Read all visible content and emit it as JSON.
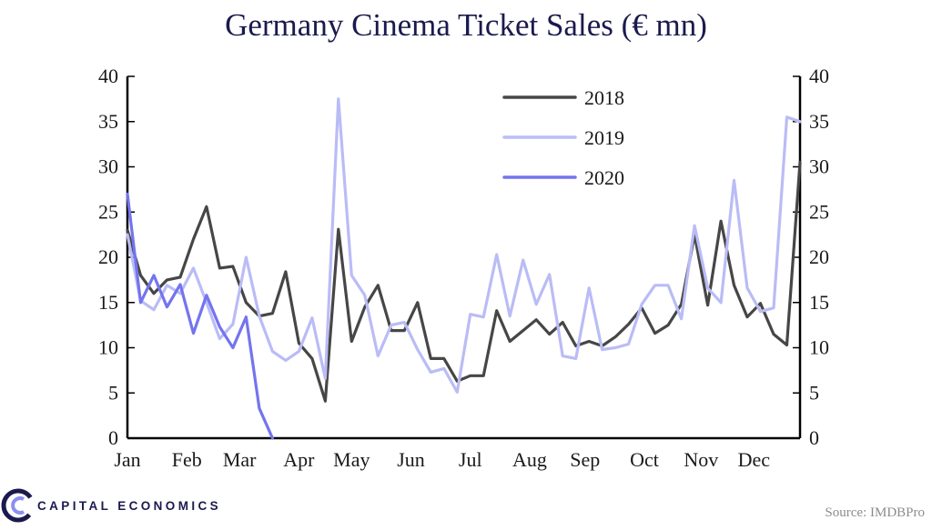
{
  "chart_data": {
    "type": "line",
    "title": "Germany Cinema Ticket Sales (€ mn)",
    "xlabel": "",
    "ylabel": "",
    "ylim": [
      0,
      40
    ],
    "yticks": [
      0,
      5,
      10,
      15,
      20,
      25,
      30,
      35,
      40
    ],
    "ytick_labels": [
      "0",
      "5",
      "10",
      "15",
      "20",
      "25",
      "30",
      "35",
      "40"
    ],
    "x_unit": "week",
    "x_range": [
      1,
      52
    ],
    "months": [
      {
        "label": "Jan",
        "week": 1
      },
      {
        "label": "Feb",
        "week": 5.5
      },
      {
        "label": "Mar",
        "week": 9.5
      },
      {
        "label": "Apr",
        "week": 14
      },
      {
        "label": "May",
        "week": 18
      },
      {
        "label": "Jun",
        "week": 22.5
      },
      {
        "label": "Jul",
        "week": 27
      },
      {
        "label": "Aug",
        "week": 31.5
      },
      {
        "label": "Sep",
        "week": 35.7
      },
      {
        "label": "Oct",
        "week": 40.2
      },
      {
        "label": "Nov",
        "week": 44.5
      },
      {
        "label": "Dec",
        "week": 48.5
      }
    ],
    "legend_position": "top-center",
    "series": [
      {
        "name": "2018",
        "color": "#464646",
        "values": [
          23.0,
          18.0,
          16.0,
          17.5,
          17.8,
          22.0,
          25.6,
          18.8,
          19.0,
          15.0,
          13.5,
          13.8,
          18.4,
          10.5,
          8.8,
          4.1,
          23.1,
          10.7,
          14.5,
          16.9,
          11.9,
          11.9,
          15.0,
          8.8,
          8.8,
          6.3,
          6.9,
          6.9,
          14.1,
          10.7,
          11.9,
          13.1,
          11.5,
          12.8,
          10.2,
          10.7,
          10.2,
          11.2,
          12.6,
          14.4,
          11.6,
          12.5,
          14.8,
          22.5,
          14.7,
          24.0,
          16.9,
          13.4,
          14.9,
          11.5,
          10.3,
          30.5
        ]
      },
      {
        "name": "2019",
        "color": "#babcf6",
        "values": [
          22.5,
          15.2,
          14.2,
          16.9,
          16.0,
          18.8,
          15.0,
          11.0,
          12.6,
          20.0,
          13.5,
          9.6,
          8.6,
          9.6,
          13.3,
          6.6,
          37.5,
          18.0,
          15.8,
          9.1,
          12.5,
          12.8,
          9.8,
          7.3,
          7.7,
          5.1,
          13.7,
          13.4,
          20.3,
          13.5,
          19.7,
          14.8,
          18.1,
          9.1,
          8.8,
          16.6,
          9.8,
          10.0,
          10.4,
          14.8,
          16.9,
          16.9,
          13.2,
          23.5,
          16.6,
          15.0,
          28.5,
          16.6,
          14.0,
          14.4,
          35.5,
          35.0
        ]
      },
      {
        "name": "2020",
        "color": "#7474ef",
        "values": [
          27.0,
          15.0,
          18.0,
          14.5,
          17.0,
          11.6,
          15.8,
          12.3,
          10.0,
          13.4,
          3.3,
          0.0
        ]
      }
    ]
  },
  "footer": {
    "brand": "CAPITAL ECONOMICS",
    "source": "Source: IMDBPro"
  },
  "colors": {
    "title": "#1a1a4e",
    "axis": "#000000",
    "brand_ring": "#1a1a4e",
    "brand_accent": "#8c8ff0"
  }
}
